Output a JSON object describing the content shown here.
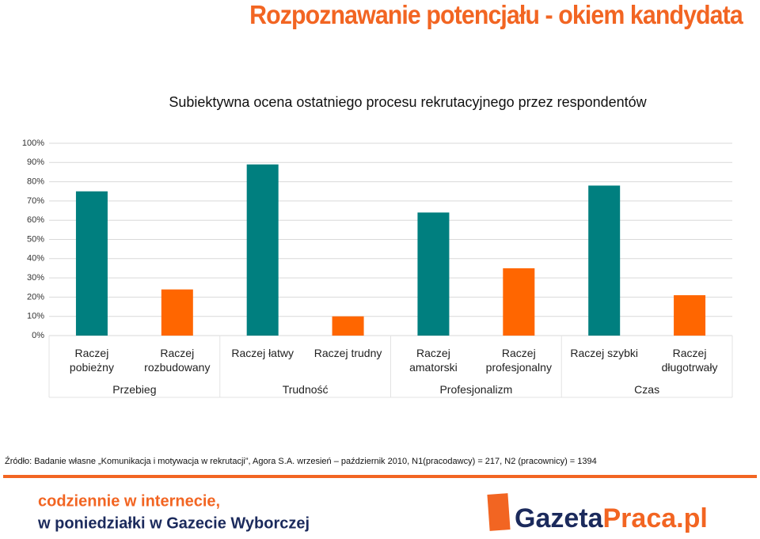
{
  "title": "Rozpoznawanie potencjału - okiem kandydata",
  "chart_data": {
    "type": "bar",
    "title": "Subiektywna ocena ostatniego procesu rekrutacyjnego przez respondentów",
    "categories": [
      "Raczej pobieżny",
      "Raczej rozbudowany",
      "Raczej łatwy",
      "Raczej trudny",
      "Raczej amatorski",
      "Raczej profesjonalny",
      "Raczej szybki",
      "Raczej długotrwały"
    ],
    "groups": [
      "Przebieg",
      "Trudność",
      "Profesjonalizm",
      "Czas"
    ],
    "values": [
      75,
      24,
      89,
      10,
      64,
      35,
      78,
      21
    ],
    "colors": [
      "#007f7f",
      "#ff6600",
      "#007f7f",
      "#ff6600",
      "#007f7f",
      "#ff6600",
      "#007f7f",
      "#ff6600"
    ],
    "ylim": [
      0,
      100
    ],
    "yticks": [
      {
        "value": 0,
        "label": "0%"
      },
      {
        "value": 10,
        "label": "10%"
      },
      {
        "value": 20,
        "label": "20%"
      },
      {
        "value": 30,
        "label": "30%"
      },
      {
        "value": 40,
        "label": "40%"
      },
      {
        "value": 50,
        "label": "50%"
      },
      {
        "value": 60,
        "label": "60%"
      },
      {
        "value": 70,
        "label": "70%"
      },
      {
        "value": 80,
        "label": "80%"
      },
      {
        "value": 90,
        "label": "90%"
      },
      {
        "value": 100,
        "label": "100%"
      }
    ],
    "grid": true
  },
  "source": "Źródło: Badanie własne „Komunikacja i motywacja w rekrutacji”, Agora S.A. wrzesień – październik 2010, N1(pracodawcy) = 217, N2 (pracownicy) = 1394",
  "footer": {
    "line1": "codziennie w internecie,",
    "line2": "w poniedziałki w Gazecie Wyborczej",
    "logo_part1": "Gazeta",
    "logo_part2": "Praca.pl"
  }
}
